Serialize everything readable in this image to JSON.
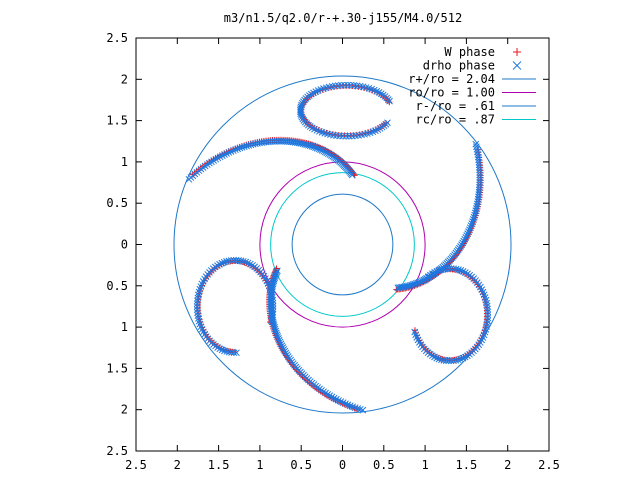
{
  "chart_data": {
    "type": "scatter",
    "title": "m3/n1.5/q2.0/r-+.30-j155/M4.0/512",
    "xlim": [
      2.5,
      -2.5
    ],
    "ylim": [
      -2.5,
      2.5
    ],
    "x_ticks": [
      {
        "value": -2.5,
        "label": "2.5"
      },
      {
        "value": -2,
        "label": "2"
      },
      {
        "value": -1.5,
        "label": "1.5"
      },
      {
        "value": -1,
        "label": "1"
      },
      {
        "value": -0.5,
        "label": "0.5"
      },
      {
        "value": 0,
        "label": "0"
      },
      {
        "value": 0.5,
        "label": "0.5"
      },
      {
        "value": 1,
        "label": "1"
      },
      {
        "value": 1.5,
        "label": "1.5"
      },
      {
        "value": 2,
        "label": "2"
      },
      {
        "value": 2.5,
        "label": "2.5"
      }
    ],
    "y_ticks": [
      {
        "value": 2.5,
        "label": "2.5"
      },
      {
        "value": 2,
        "label": "2"
      },
      {
        "value": 1.5,
        "label": "1.5"
      },
      {
        "value": 1,
        "label": "1"
      },
      {
        "value": 0.5,
        "label": "0.5"
      },
      {
        "value": 0,
        "label": "0"
      },
      {
        "value": -0.5,
        "label": "0.5"
      },
      {
        "value": -1,
        "label": "1"
      },
      {
        "value": -1.5,
        "label": "1.5"
      },
      {
        "value": -2,
        "label": "2"
      },
      {
        "value": -2.5,
        "label": "2.5"
      }
    ],
    "legend_position": "top-right",
    "circles": [
      {
        "name": "r+/ro = 2.04",
        "radius": 2.04,
        "color": "#1f78c8"
      },
      {
        "name": "ro/ro = 1.00",
        "radius": 1.0,
        "color": "#b000b0"
      },
      {
        "name": "r-/ro = .61",
        "radius": 0.61,
        "color": "#1f78c8"
      },
      {
        "name": "rc/ro = .87",
        "radius": 0.87,
        "color": "#00c8c8"
      }
    ],
    "series": [
      {
        "name": "W phase",
        "marker": "plus",
        "color": "#e8141e",
        "arms": [
          {
            "r_start": 0.85,
            "r_end": 2.0,
            "theta_start": 80,
            "theta_end": 155,
            "samples": 90
          },
          {
            "r_start": 0.85,
            "r_end": 2.0,
            "theta_start": -40,
            "theta_end": 35,
            "samples": 90
          },
          {
            "r_start": 0.85,
            "r_end": 2.0,
            "theta_start": 200,
            "theta_end": 275,
            "samples": 90
          }
        ],
        "curls": [
          {
            "cx": 0.05,
            "cy": 1.62,
            "rx": 0.55,
            "ry": 0.3,
            "theta_start": 20,
            "theta_end": 330
          },
          {
            "cx": 1.3,
            "cy": -0.85,
            "rx": 0.45,
            "ry": 0.55,
            "theta_start": 200,
            "theta_end": 490
          },
          {
            "cx": -1.3,
            "cy": -0.75,
            "rx": 0.45,
            "ry": 0.55,
            "theta_start": -20,
            "theta_end": 270
          }
        ]
      },
      {
        "name": "drho phase",
        "marker": "cross",
        "color": "#1e78e0",
        "arms": [
          {
            "r_start": 0.85,
            "r_end": 2.02,
            "theta_start": 82,
            "theta_end": 157,
            "samples": 90
          },
          {
            "r_start": 0.85,
            "r_end": 2.02,
            "theta_start": -38,
            "theta_end": 37,
            "samples": 90
          },
          {
            "r_start": 0.85,
            "r_end": 2.02,
            "theta_start": 202,
            "theta_end": 277,
            "samples": 90
          }
        ],
        "curls": [
          {
            "cx": 0.05,
            "cy": 1.62,
            "rx": 0.56,
            "ry": 0.31,
            "theta_start": 22,
            "theta_end": 332
          },
          {
            "cx": 1.3,
            "cy": -0.85,
            "rx": 0.46,
            "ry": 0.56,
            "theta_start": 202,
            "theta_end": 492
          },
          {
            "cx": -1.3,
            "cy": -0.75,
            "rx": 0.46,
            "ry": 0.56,
            "theta_start": -18,
            "theta_end": 272
          }
        ]
      }
    ]
  }
}
